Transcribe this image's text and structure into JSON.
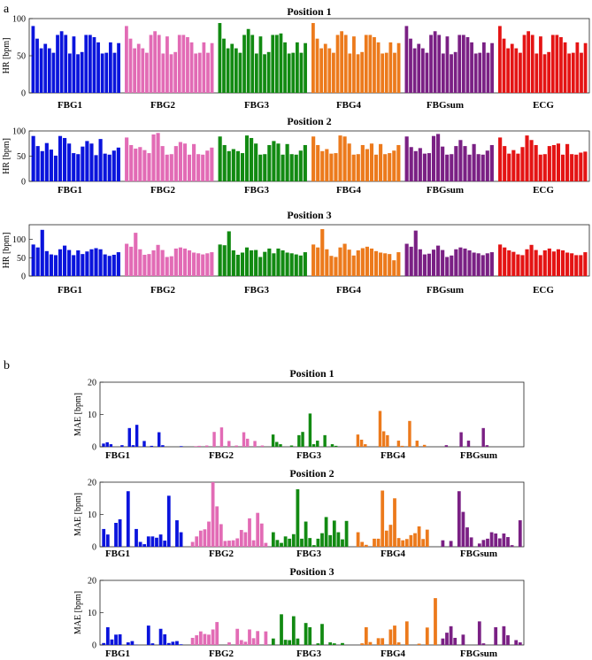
{
  "panel_labels": [
    "a",
    "b"
  ],
  "colors": {
    "FBG1": "#0a14dc",
    "FBG2": "#e26bb5",
    "FBG3": "#128a12",
    "FBG4": "#ec7a1c",
    "FBGsum": "#7a2084",
    "ECG": "#e41414"
  },
  "chart_data": [
    {
      "type": "bar",
      "title": "Position 1",
      "ylabel": "HR [bpm]",
      "ylim": [
        0,
        100
      ],
      "yticks": [
        0,
        50,
        100
      ],
      "groups": [
        "FBG1",
        "FBG2",
        "FBG3",
        "FBG4",
        "FBGsum",
        "ECG"
      ],
      "series": [
        {
          "name": "FBG1",
          "values": [
            90,
            73,
            60,
            66,
            60,
            54,
            78,
            83,
            78,
            53,
            76,
            52,
            55,
            78,
            78,
            75,
            68,
            53,
            54,
            68,
            54,
            67
          ]
        },
        {
          "name": "FBG2",
          "values": [
            90,
            73,
            60,
            66,
            60,
            54,
            78,
            83,
            78,
            53,
            76,
            52,
            55,
            78,
            78,
            75,
            68,
            53,
            54,
            68,
            54,
            67
          ]
        },
        {
          "name": "FBG3",
          "values": [
            94,
            73,
            60,
            66,
            60,
            54,
            78,
            86,
            78,
            53,
            76,
            52,
            55,
            78,
            78,
            80,
            68,
            53,
            54,
            68,
            54,
            67
          ]
        },
        {
          "name": "FBG4",
          "values": [
            94,
            73,
            60,
            66,
            60,
            54,
            78,
            83,
            78,
            53,
            76,
            52,
            55,
            78,
            78,
            75,
            68,
            53,
            54,
            68,
            54,
            67
          ]
        },
        {
          "name": "FBGsum",
          "values": [
            90,
            73,
            60,
            66,
            60,
            54,
            78,
            83,
            78,
            53,
            76,
            52,
            55,
            78,
            78,
            75,
            68,
            53,
            54,
            68,
            54,
            67
          ]
        },
        {
          "name": "ECG",
          "values": [
            90,
            73,
            60,
            66,
            60,
            54,
            78,
            83,
            78,
            53,
            76,
            52,
            55,
            78,
            78,
            75,
            68,
            53,
            54,
            68,
            54,
            67
          ]
        }
      ]
    },
    {
      "type": "bar",
      "title": "Position 2",
      "ylabel": "HR [bpm]",
      "ylim": [
        0,
        100
      ],
      "yticks": [
        0,
        50,
        100
      ],
      "groups": [
        "FBG1",
        "FBG2",
        "FBG3",
        "FBG4",
        "FBGsum",
        "ECG"
      ],
      "series": [
        {
          "name": "FBG1",
          "values": [
            90,
            70,
            60,
            76,
            63,
            51,
            90,
            86,
            75,
            56,
            54,
            69,
            80,
            75,
            52,
            84,
            55,
            53,
            61,
            67
          ]
        },
        {
          "name": "FBG2",
          "values": [
            87,
            72,
            65,
            68,
            62,
            56,
            93,
            96,
            70,
            53,
            54,
            70,
            78,
            75,
            53,
            74,
            54,
            53,
            61,
            67
          ]
        },
        {
          "name": "FBG3",
          "values": [
            89,
            72,
            60,
            64,
            60,
            56,
            91,
            86,
            75,
            53,
            54,
            72,
            80,
            75,
            53,
            74,
            54,
            53,
            61,
            72
          ]
        },
        {
          "name": "FBG4",
          "values": [
            89,
            72,
            60,
            64,
            55,
            56,
            91,
            89,
            75,
            53,
            54,
            72,
            64,
            75,
            53,
            74,
            54,
            56,
            61,
            72
          ]
        },
        {
          "name": "FBGsum",
          "values": [
            89,
            68,
            60,
            66,
            55,
            56,
            90,
            94,
            69,
            53,
            54,
            70,
            82,
            70,
            53,
            74,
            54,
            53,
            61,
            72
          ]
        },
        {
          "name": "ECG",
          "values": [
            87,
            70,
            55,
            62,
            55,
            68,
            91,
            82,
            72,
            53,
            54,
            70,
            72,
            75,
            53,
            74,
            54,
            53,
            57,
            59
          ]
        }
      ]
    },
    {
      "type": "bar",
      "title": "Position 3",
      "ylabel": "HR [bpm]",
      "ylim": [
        0,
        140
      ],
      "yticks": [
        0,
        50,
        100
      ],
      "groups": [
        "FBG1",
        "FBG2",
        "FBG3",
        "FBG4",
        "FBGsum",
        "ECG"
      ],
      "series": [
        {
          "name": "FBG1",
          "values": [
            86,
            78,
            126,
            68,
            59,
            57,
            73,
            83,
            71,
            57,
            70,
            60,
            67,
            73,
            76,
            73,
            59,
            55,
            58,
            65
          ]
        },
        {
          "name": "FBG2",
          "values": [
            88,
            80,
            118,
            73,
            58,
            60,
            70,
            85,
            71,
            52,
            54,
            75,
            78,
            75,
            70,
            64,
            62,
            59,
            62,
            65
          ]
        },
        {
          "name": "FBG3",
          "values": [
            86,
            84,
            122,
            70,
            58,
            64,
            78,
            70,
            71,
            52,
            66,
            75,
            62,
            75,
            70,
            64,
            62,
            59,
            56,
            65
          ]
        },
        {
          "name": "FBG4",
          "values": [
            86,
            78,
            128,
            73,
            55,
            52,
            78,
            88,
            72,
            56,
            70,
            76,
            80,
            75,
            68,
            64,
            62,
            60,
            43,
            65
          ]
        },
        {
          "name": "FBGsum",
          "values": [
            88,
            80,
            124,
            73,
            59,
            61,
            72,
            83,
            71,
            52,
            56,
            73,
            78,
            75,
            70,
            64,
            62,
            57,
            62,
            65
          ]
        },
        {
          "name": "ECG",
          "values": [
            86,
            78,
            70,
            66,
            59,
            57,
            73,
            85,
            71,
            57,
            70,
            75,
            67,
            73,
            70,
            64,
            62,
            57,
            57,
            65
          ]
        }
      ]
    },
    {
      "type": "bar",
      "title": "Position 1",
      "ylabel": "MAE [bpm]",
      "ylim": [
        0,
        20
      ],
      "yticks": [
        0,
        10,
        20
      ],
      "groups": [
        "FBG1",
        "FBG2",
        "FBG3",
        "FBG4",
        "FBGsum"
      ],
      "series": [
        {
          "name": "FBG1",
          "values": [
            1.0,
            1.4,
            0.8,
            0,
            0,
            0.5,
            0,
            5.8,
            0.5,
            6.8,
            0,
            1.8,
            0,
            0.3,
            0,
            4.5,
            0.5,
            0,
            0,
            0,
            0,
            0.2
          ]
        },
        {
          "name": "FBG2",
          "values": [
            0,
            0,
            0.2,
            0.3,
            0,
            0.4,
            0,
            4.6,
            0,
            6.0,
            0,
            1.8,
            0,
            0.4,
            0,
            4.5,
            2.5,
            0,
            1.8,
            0,
            0.4,
            0
          ]
        },
        {
          "name": "FBG3",
          "values": [
            3.8,
            1.5,
            0.8,
            0,
            0,
            0.4,
            0,
            3.6,
            4.6,
            0,
            10.3,
            0.8,
            1.9,
            0,
            3.6,
            0,
            0.8,
            0.3,
            0,
            0,
            0,
            0
          ]
        },
        {
          "name": "FBG4",
          "values": [
            3.8,
            2.2,
            0.8,
            0,
            0,
            0,
            11.1,
            4.8,
            3.6,
            0,
            0,
            1.9,
            0.3,
            0,
            8.0,
            0,
            1.9,
            0,
            0.6,
            0,
            0,
            0
          ]
        },
        {
          "name": "FBGsum",
          "values": [
            0,
            0.5,
            0,
            0,
            0,
            4.5,
            0,
            1.9,
            0,
            0,
            0,
            5.8,
            0.5,
            0,
            0,
            0,
            0,
            0,
            0,
            0,
            0,
            0
          ]
        }
      ]
    },
    {
      "type": "bar",
      "title": "Position 2",
      "ylabel": "MAE [bpm]",
      "ylim": [
        0,
        20
      ],
      "yticks": [
        0,
        10,
        20
      ],
      "groups": [
        "FBG1",
        "FBG2",
        "FBG3",
        "FBG4",
        "FBGsum"
      ],
      "series": [
        {
          "name": "FBG1",
          "values": [
            5.5,
            3.8,
            0,
            7.4,
            8.5,
            0,
            17.2,
            0,
            5.5,
            1.5,
            0.8,
            3.2,
            3.2,
            2.8,
            3.8,
            1.9,
            15.8,
            0,
            8.2,
            4.5
          ]
        },
        {
          "name": "FBG2",
          "values": [
            0,
            1.5,
            3.2,
            5.0,
            5.4,
            7.8,
            20.2,
            12.5,
            7.0,
            1.8,
            1.9,
            2.0,
            2.6,
            5.2,
            4.5,
            8.8,
            2.0,
            10.5,
            7.2,
            1.2
          ]
        },
        {
          "name": "FBG3",
          "values": [
            4.5,
            2.1,
            1.2,
            3.2,
            2.5,
            3.9,
            17.8,
            2.5,
            7.8,
            2.7,
            0.5,
            2.5,
            4.2,
            9.2,
            3.6,
            8.1,
            4.5,
            2.3,
            8.0,
            0
          ]
        },
        {
          "name": "FBG4",
          "values": [
            4.5,
            1.5,
            0.6,
            0,
            2.5,
            2.5,
            17.4,
            5.0,
            6.8,
            15.0,
            2.7,
            2.0,
            2.4,
            3.6,
            4.2,
            6.3,
            2.4,
            5.3,
            0,
            0
          ]
        },
        {
          "name": "FBGsum",
          "values": [
            2.0,
            0,
            1.8,
            0,
            17.2,
            10.8,
            6.0,
            2.9,
            0,
            1.0,
            2.1,
            2.5,
            4.5,
            4.1,
            2.6,
            4.1,
            3.0,
            0.5,
            0,
            8.2
          ]
        }
      ]
    },
    {
      "type": "bar",
      "title": "Position 3",
      "ylabel": "MAE [bpm]",
      "ylim": [
        0,
        20
      ],
      "yticks": [
        0,
        10,
        20
      ],
      "groups": [
        "FBG1",
        "FBG2",
        "FBG3",
        "FBG4",
        "FBGsum"
      ],
      "series": [
        {
          "name": "FBG1",
          "values": [
            0.6,
            5.5,
            1.7,
            3.2,
            3.3,
            0,
            0.8,
            1.2,
            0.1,
            0,
            0,
            6.0,
            0.5,
            0,
            5.0,
            3.3,
            0.6,
            1.0,
            1.2,
            0.2
          ]
        },
        {
          "name": "FBG2",
          "values": [
            0,
            2.2,
            3.0,
            4.2,
            3.4,
            3.2,
            4.8,
            7.1,
            0,
            0,
            0.8,
            0,
            5.0,
            1.5,
            1.0,
            4.8,
            2.1,
            4.3,
            0,
            4.2
          ]
        },
        {
          "name": "FBG3",
          "values": [
            2.0,
            0,
            9.5,
            1.6,
            1.5,
            8.9,
            2.0,
            0,
            6.8,
            5.5,
            0,
            0.5,
            6.5,
            0,
            0.8,
            0.5,
            0,
            0.6,
            0,
            0
          ]
        },
        {
          "name": "FBG4",
          "values": [
            0,
            0.5,
            5.5,
            0.9,
            0,
            2.1,
            2.1,
            0,
            4.8,
            6.0,
            0.8,
            0,
            7.3,
            0,
            0,
            0.4,
            0,
            5.4,
            0,
            14.5
          ]
        },
        {
          "name": "FBGsum",
          "values": [
            2.0,
            3.8,
            5.8,
            2.2,
            0,
            3.2,
            0,
            0,
            0,
            7.3,
            0.5,
            0,
            0,
            5.5,
            0,
            5.8,
            3.0,
            0,
            1.5,
            0.8
          ]
        }
      ]
    }
  ]
}
